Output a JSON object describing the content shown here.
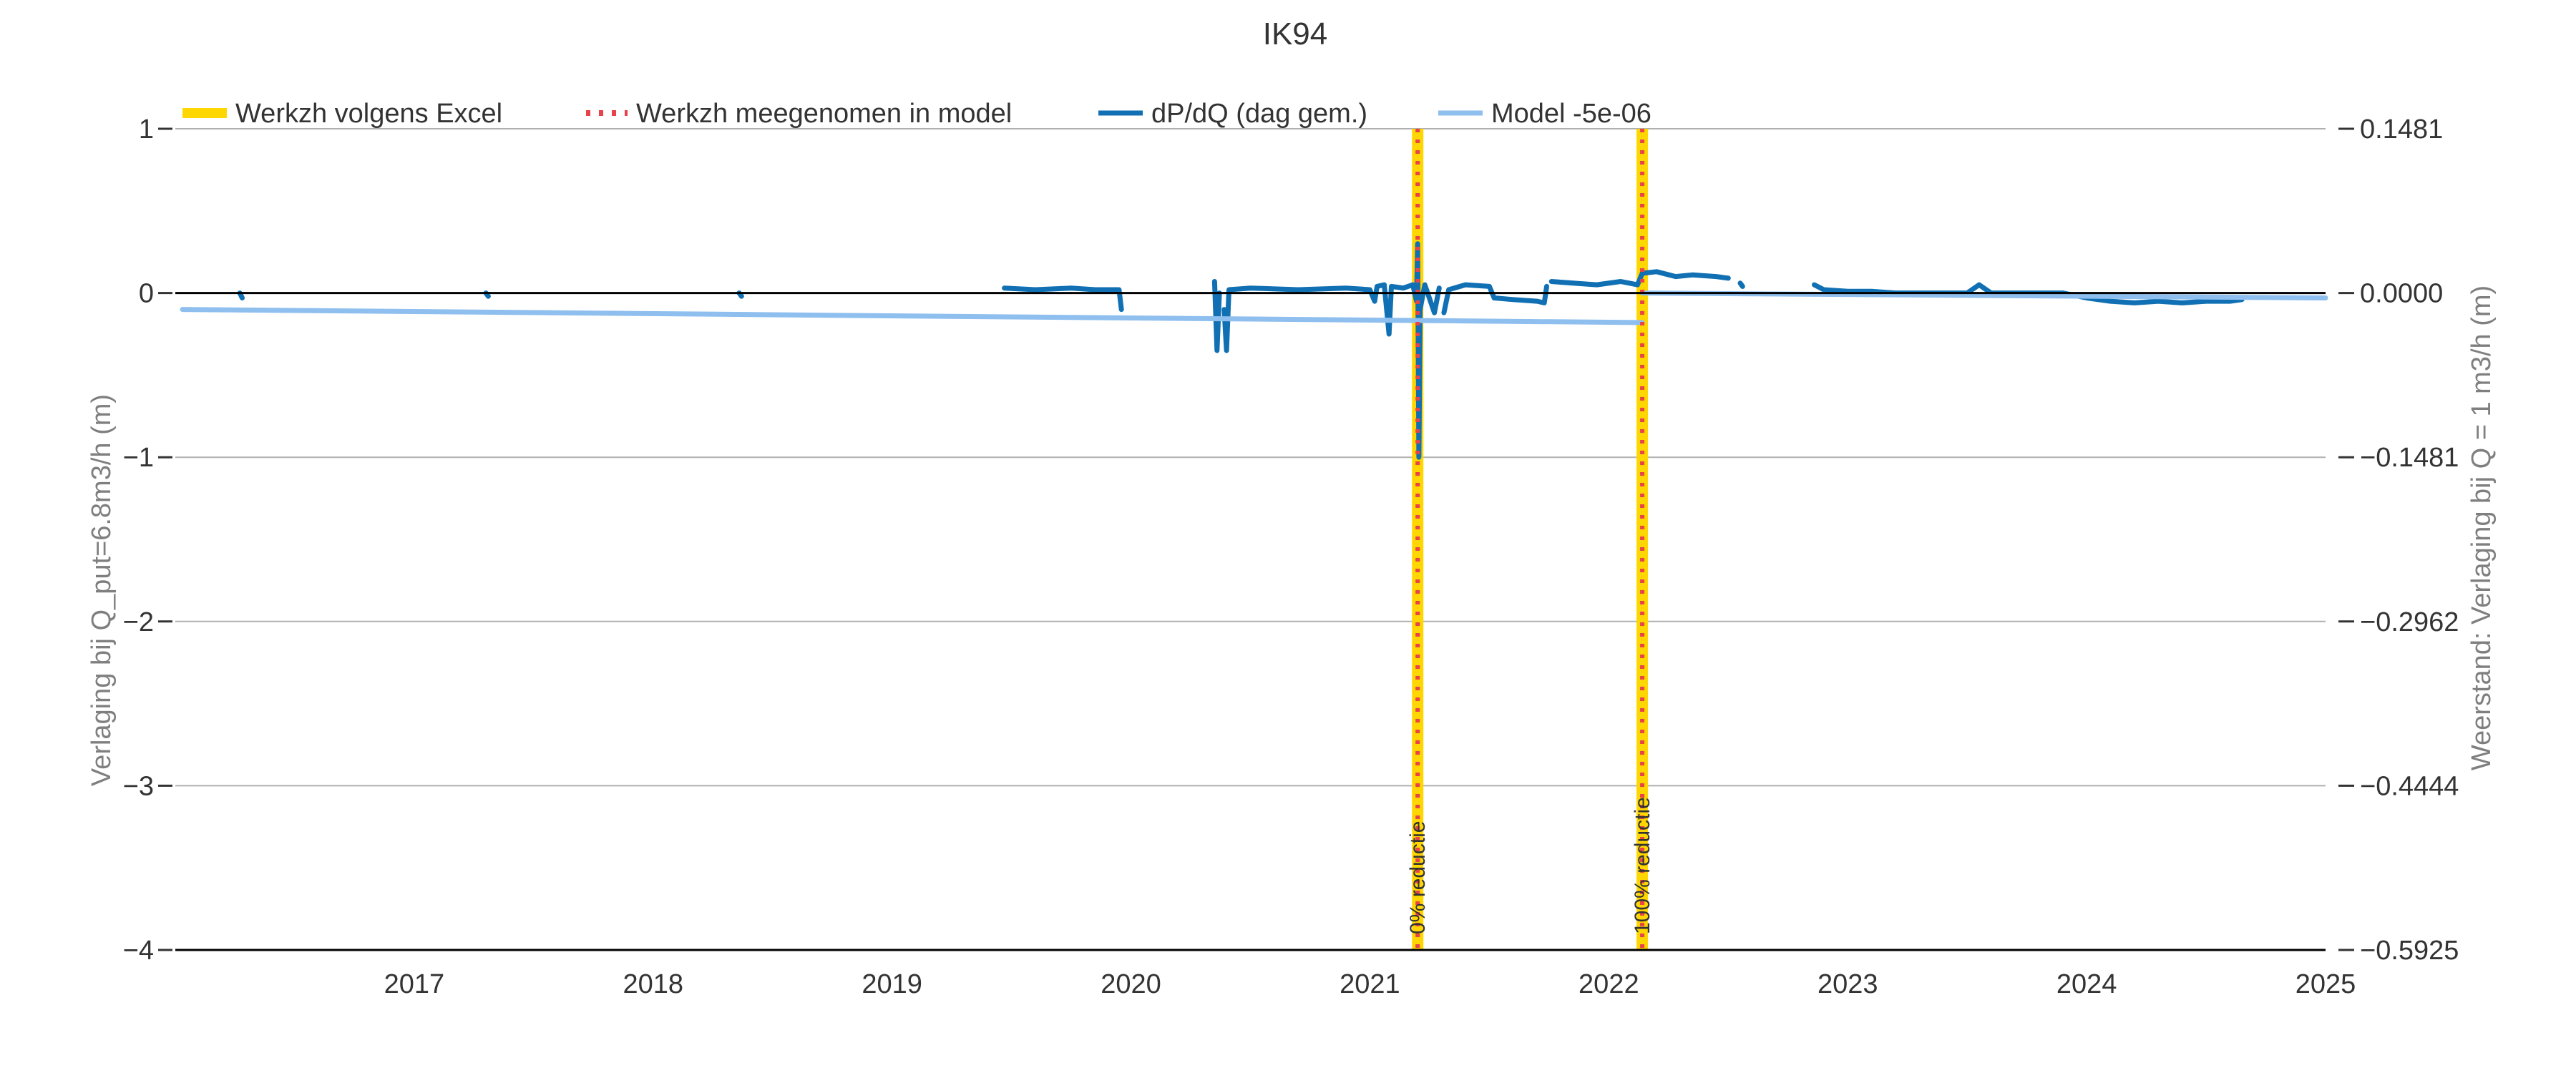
{
  "chart_data": {
    "type": "line",
    "title": "IK94",
    "ylabel": "Verlaging bij Q_put=6.8m3/h (m)",
    "y2label": "Weerstand: Verlaging bij Q = 1 m3/h (m)",
    "xlim": [
      2016.0,
      2025.0
    ],
    "ylim": [
      -4,
      1
    ],
    "x_ticks": [
      2017,
      2018,
      2019,
      2020,
      2021,
      2022,
      2023,
      2024,
      2025
    ],
    "y_ticks": [
      1,
      0,
      -1,
      -2,
      -3,
      -4
    ],
    "y_tick_labels": [
      "1",
      "0",
      "−1",
      "−2",
      "−3",
      "−4"
    ],
    "y2_tick_labels": [
      "0.1481",
      "0.0000",
      "−0.1481",
      "−0.2962",
      "−0.4444",
      "−0.5925"
    ],
    "grid": "horizontal",
    "legend_position": "top-left",
    "legend": [
      {
        "label": "Werkzh volgens Excel",
        "color": "#ffd700",
        "style": "thick"
      },
      {
        "label": "Werkzh meegenomen in model",
        "color": "#e8434b",
        "style": "dotted"
      },
      {
        "label": "dP/dQ (dag gem.)",
        "color": "#1170b3",
        "style": "solid"
      },
      {
        "label": "Model -5e-06",
        "color": "#8fbfee",
        "style": "solid"
      }
    ],
    "events": [
      {
        "x": 2021.2,
        "label": "0% reductie"
      },
      {
        "x": 2022.14,
        "label": "100% reductie"
      }
    ],
    "series": [
      {
        "name": "dP/dQ (dag gem.)",
        "color": "#1170b3",
        "segments": [
          [
            [
              2016.27,
              0.0
            ],
            [
              2016.28,
              -0.03
            ]
          ],
          [
            [
              2017.3,
              0.0
            ],
            [
              2017.31,
              -0.02
            ]
          ],
          [
            [
              2018.36,
              0.0
            ],
            [
              2018.37,
              -0.02
            ]
          ],
          [
            [
              2019.47,
              0.03
            ],
            [
              2019.6,
              0.02
            ],
            [
              2019.75,
              0.03
            ],
            [
              2019.85,
              0.02
            ],
            [
              2019.95,
              0.02
            ],
            [
              2019.96,
              -0.1
            ]
          ],
          [
            [
              2020.35,
              0.07
            ],
            [
              2020.36,
              -0.35
            ],
            [
              2020.37,
              0.0
            ]
          ],
          [
            [
              2020.39,
              -0.1
            ],
            [
              2020.4,
              -0.35
            ],
            [
              2020.41,
              0.02
            ],
            [
              2020.5,
              0.03
            ],
            [
              2020.7,
              0.02
            ],
            [
              2020.9,
              0.03
            ],
            [
              2021.0,
              0.02
            ],
            [
              2021.02,
              -0.05
            ],
            [
              2021.03,
              0.04
            ],
            [
              2021.06,
              0.05
            ],
            [
              2021.08,
              -0.25
            ],
            [
              2021.09,
              0.04
            ],
            [
              2021.14,
              0.03
            ],
            [
              2021.18,
              0.05
            ],
            [
              2021.195,
              -0.05
            ],
            [
              2021.2,
              0.3
            ],
            [
              2021.205,
              -1.0
            ],
            [
              2021.21,
              -0.1
            ],
            [
              2021.23,
              0.05
            ],
            [
              2021.27,
              -0.12
            ],
            [
              2021.29,
              0.03
            ]
          ],
          [
            [
              2021.31,
              -0.12
            ],
            [
              2021.33,
              0.02
            ],
            [
              2021.4,
              0.05
            ],
            [
              2021.5,
              0.04
            ],
            [
              2021.52,
              -0.03
            ],
            [
              2021.6,
              -0.04
            ],
            [
              2021.7,
              -0.05
            ],
            [
              2021.73,
              -0.06
            ],
            [
              2021.74,
              0.04
            ]
          ],
          [
            [
              2021.76,
              0.07
            ],
            [
              2021.85,
              0.06
            ],
            [
              2021.95,
              0.05
            ],
            [
              2022.05,
              0.07
            ],
            [
              2022.12,
              0.05
            ],
            [
              2022.14,
              0.12
            ],
            [
              2022.2,
              0.13
            ],
            [
              2022.28,
              0.1
            ],
            [
              2022.35,
              0.11
            ],
            [
              2022.45,
              0.1
            ],
            [
              2022.5,
              0.09
            ]
          ],
          [
            [
              2022.55,
              0.06
            ],
            [
              2022.56,
              0.04
            ]
          ],
          [
            [
              2022.86,
              0.05
            ],
            [
              2022.9,
              0.02
            ],
            [
              2023.0,
              0.01
            ],
            [
              2023.1,
              0.01
            ],
            [
              2023.2,
              0.0
            ],
            [
              2023.35,
              0.0
            ],
            [
              2023.5,
              0.0
            ],
            [
              2023.55,
              0.05
            ],
            [
              2023.6,
              0.0
            ],
            [
              2023.8,
              0.0
            ],
            [
              2023.9,
              0.0
            ],
            [
              2024.0,
              -0.03
            ],
            [
              2024.1,
              -0.05
            ],
            [
              2024.2,
              -0.06
            ],
            [
              2024.3,
              -0.05
            ],
            [
              2024.4,
              -0.06
            ],
            [
              2024.5,
              -0.05
            ],
            [
              2024.6,
              -0.05
            ],
            [
              2024.65,
              -0.04
            ]
          ]
        ]
      },
      {
        "name": "Model -5e-06",
        "color": "#8fbfee",
        "segments": [
          [
            [
              2016.03,
              -0.1
            ],
            [
              2022.14,
              -0.18
            ]
          ],
          [
            [
              2022.14,
              0.0
            ],
            [
              2025.0,
              -0.03
            ]
          ]
        ]
      }
    ]
  }
}
